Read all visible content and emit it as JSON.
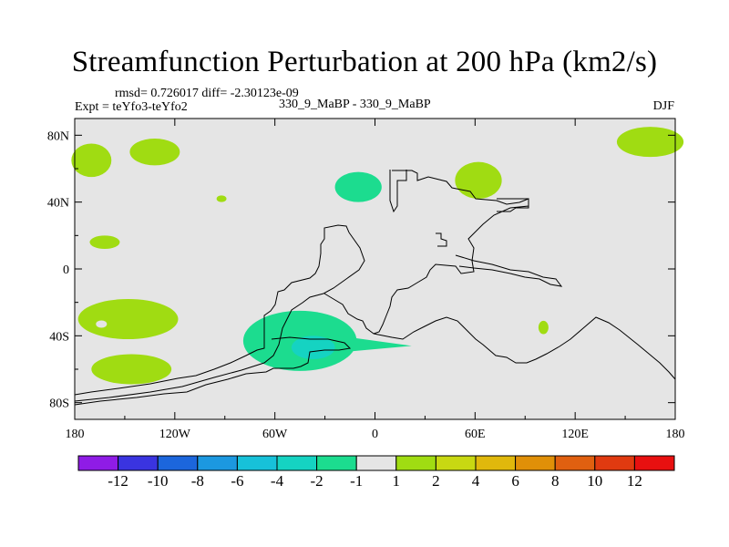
{
  "chart_data": {
    "type": "heatmap",
    "title": "Streamfunction Perturbation at 200 hPa (km2/s)",
    "stats_text": "rmsd= 0.726017  diff= -2.30123e-09",
    "left_label": "Expt = teYfo3-teYfo2",
    "center_label": "330_9_MaBP - 330_9_MaBP",
    "right_label": "DJF",
    "xlim": [
      -180,
      180
    ],
    "ylim": [
      -90,
      90
    ],
    "x_ticks": [
      {
        "value": -180,
        "label": "180"
      },
      {
        "value": -120,
        "label": "120W"
      },
      {
        "value": -60,
        "label": "60W"
      },
      {
        "value": 0,
        "label": "0"
      },
      {
        "value": 60,
        "label": "60E"
      },
      {
        "value": 120,
        "label": "120E"
      },
      {
        "value": 180,
        "label": "180"
      }
    ],
    "y_ticks": [
      {
        "value": 80,
        "label": "80N"
      },
      {
        "value": 40,
        "label": "40N"
      },
      {
        "value": 0,
        "label": "0"
      },
      {
        "value": -40,
        "label": "40S"
      },
      {
        "value": -80,
        "label": "80S"
      }
    ],
    "colorbar": {
      "levels": [
        "-12",
        "-10",
        "-8",
        "-6",
        "-4",
        "-2",
        "-1",
        "1",
        "2",
        "4",
        "6",
        "8",
        "10",
        "12"
      ],
      "colors": [
        "#8f1ce6",
        "#3a34e0",
        "#1c66dc",
        "#1c98e0",
        "#17c1d9",
        "#15d3c2",
        "#1cdc8f",
        "#e5e5e5",
        "#a0dc12",
        "#c8d812",
        "#e0b80c",
        "#e09008",
        "#e06010",
        "#e03a10",
        "#e81010"
      ]
    },
    "anomaly_regions": [
      {
        "name": "NE Pacific high",
        "center": [
          -132,
          70
        ],
        "radii": [
          15,
          8
        ],
        "level": "1 to 2"
      },
      {
        "name": "Arctic Pacific high",
        "center": [
          -170,
          65
        ],
        "radii": [
          12,
          10
        ],
        "level": "1 to 2"
      },
      {
        "name": "Mid-latitude Pacific small high",
        "center": [
          -92,
          42
        ],
        "radii": [
          3,
          2
        ],
        "level": "1 to 2"
      },
      {
        "name": "North Atlantic low",
        "center": [
          -10,
          49
        ],
        "radii": [
          14,
          9
        ],
        "level": "-1 to -2"
      },
      {
        "name": "Central Asia high",
        "center": [
          62,
          53
        ],
        "radii": [
          14,
          11
        ],
        "level": "1 to 2"
      },
      {
        "name": "NE Asia high",
        "center": [
          165,
          76
        ],
        "radii": [
          20,
          9
        ],
        "level": "1 to 2"
      },
      {
        "name": "Subtropical Pacific high",
        "center": [
          -162,
          16
        ],
        "radii": [
          9,
          4
        ],
        "level": "1 to 2"
      },
      {
        "name": "South Pacific high",
        "center": [
          -148,
          -30
        ],
        "radii": [
          30,
          12
        ],
        "level": "1 to 2"
      },
      {
        "name": "Southern Ocean high",
        "center": [
          -146,
          -60
        ],
        "radii": [
          24,
          9
        ],
        "level": "1 to 2"
      },
      {
        "name": "South Atlantic low",
        "center": [
          -45,
          -43
        ],
        "radii": [
          34,
          18
        ],
        "level": "-1 to -4"
      },
      {
        "name": "South Atlantic core",
        "center": [
          -37,
          -47
        ],
        "radii": [
          13,
          7
        ],
        "level": "-2 to -4"
      },
      {
        "name": "Indian Ocean high",
        "center": [
          101,
          -35
        ],
        "radii": [
          3,
          4
        ],
        "level": "1 to 2"
      }
    ]
  }
}
